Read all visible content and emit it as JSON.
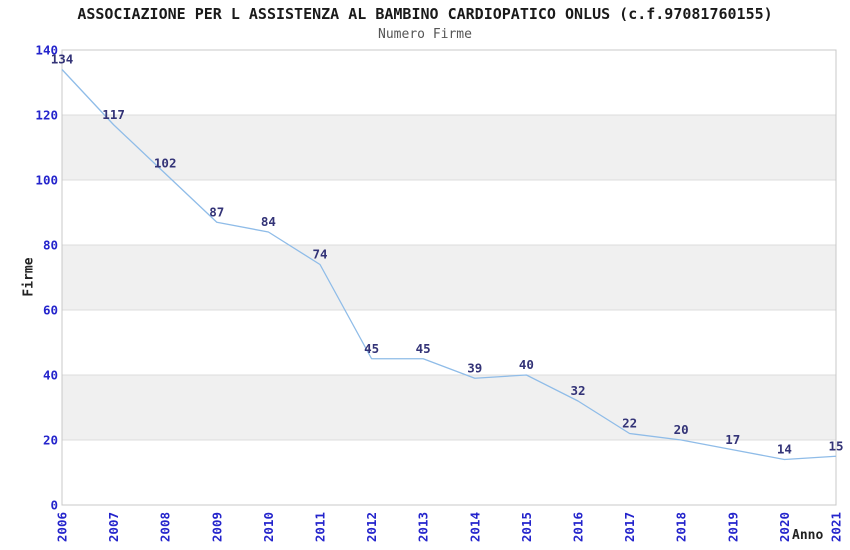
{
  "chart_data": {
    "type": "line",
    "title": "ASSOCIAZIONE PER L ASSISTENZA AL BAMBINO CARDIOPATICO ONLUS (c.f.97081760155)",
    "subtitle": "Numero Firme",
    "xlabel": "Anno",
    "ylabel": "Firme",
    "x": [
      "2006",
      "2007",
      "2008",
      "2009",
      "2010",
      "2011",
      "2012",
      "2013",
      "2014",
      "2015",
      "2016",
      "2017",
      "2018",
      "2019",
      "2020",
      "2021"
    ],
    "values": [
      134,
      117,
      102,
      87,
      84,
      74,
      45,
      45,
      39,
      40,
      32,
      22,
      20,
      17,
      14,
      15
    ],
    "ylim": [
      0,
      140
    ],
    "y_ticks": [
      0,
      20,
      40,
      60,
      80,
      100,
      120,
      140
    ],
    "grid": "alternating-horizontal-bands",
    "band_fill_ranges": [
      [
        20,
        40
      ],
      [
        60,
        80
      ],
      [
        100,
        120
      ]
    ],
    "legend": "none",
    "data_labels": true,
    "colors": {
      "line": "#8fbce8",
      "tick_label": "#2424cc",
      "data_label": "#333377",
      "band": "#f0f0f0",
      "gridline": "#dcdcdc",
      "plot_border": "#c8c8c8",
      "title": "#1a1a1a",
      "subtitle": "#555555",
      "axis_label": "#222222"
    }
  }
}
